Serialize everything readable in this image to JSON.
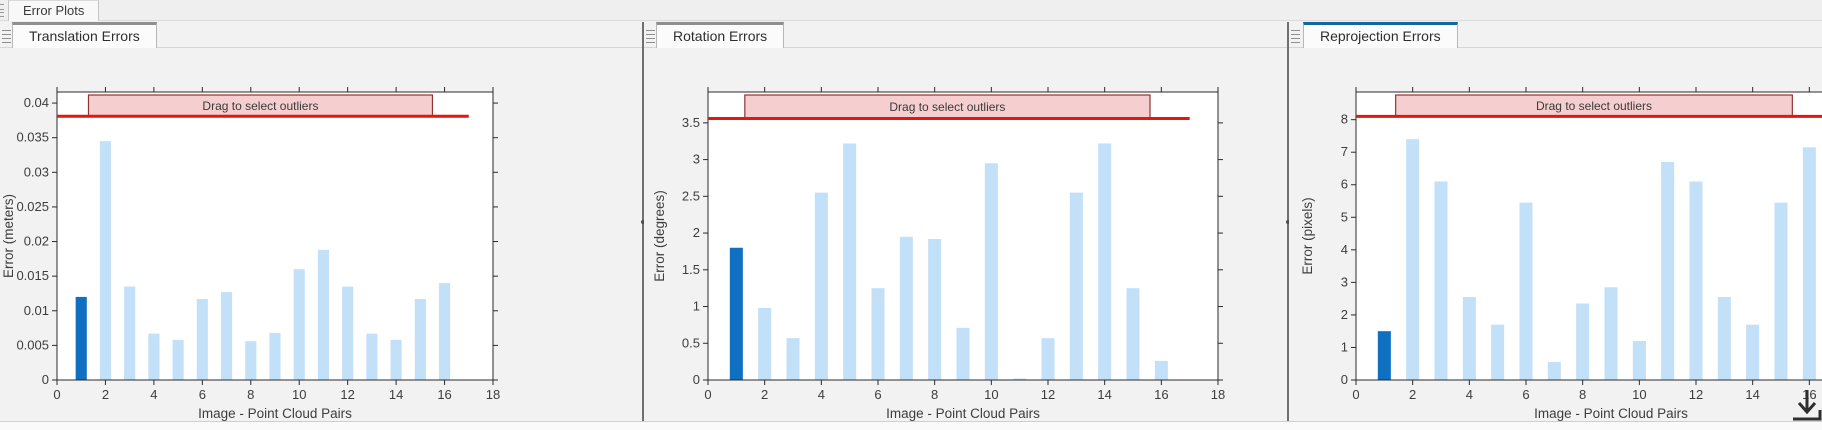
{
  "window": {
    "doc_tab": "Error Plots"
  },
  "colors": {
    "accent_blue": "#15659f",
    "inactive_tab_top": "#8f8f8f",
    "bar_light": "#c3e0f9",
    "bar_dark": "#0f6fc1",
    "threshold_red": "#e2180e",
    "band_fill": "#f5cfcf",
    "band_border": "#8c3434",
    "axis": "#2b2b2b",
    "label_text": "#3d3d3d"
  },
  "chart_data": [
    {
      "type": "bar",
      "tab": {
        "label": "Translation Errors",
        "active": false
      },
      "ylabel": "Error (meters)",
      "xlabel": "Image - Point Cloud Pairs",
      "x": [
        1,
        2,
        3,
        4,
        5,
        6,
        7,
        8,
        9,
        10,
        11,
        12,
        13,
        14,
        15,
        16
      ],
      "values": [
        0.012,
        0.0345,
        0.0135,
        0.0067,
        0.0058,
        0.0117,
        0.0127,
        0.0056,
        0.0068,
        0.016,
        0.0188,
        0.0135,
        0.0067,
        0.0058,
        0.0117,
        0.014
      ],
      "highlight_index": 0,
      "bar_width": 0.46,
      "xlim": [
        0,
        18
      ],
      "ylim": [
        0,
        0.0416
      ],
      "xticks": [
        0,
        2,
        4,
        6,
        8,
        10,
        12,
        14,
        16,
        18
      ],
      "yticks": [
        0,
        0.005,
        0.01,
        0.015,
        0.02,
        0.025,
        0.03,
        0.035,
        0.04
      ],
      "threshold": 0.0381,
      "threshold_extent": [
        0,
        17
      ],
      "band": {
        "x0": 1.3,
        "x1": 15.5,
        "label": "Drag to select outliers"
      }
    },
    {
      "type": "bar",
      "tab": {
        "label": "Rotation Errors",
        "active": false
      },
      "ylabel": "Error (degrees)",
      "xlabel": "Image - Point Cloud Pairs",
      "x": [
        1,
        2,
        3,
        4,
        5,
        6,
        7,
        8,
        9,
        10,
        11,
        12,
        13,
        14,
        15,
        16
      ],
      "values": [
        1.8,
        0.98,
        0.57,
        2.55,
        3.22,
        1.25,
        1.95,
        1.92,
        0.71,
        2.95,
        0.02,
        0.57,
        2.55,
        3.22,
        1.25,
        0.26
      ],
      "highlight_index": 0,
      "bar_width": 0.46,
      "xlim": [
        0,
        18
      ],
      "ylim": [
        0,
        3.92
      ],
      "xticks": [
        0,
        2,
        4,
        6,
        8,
        10,
        12,
        14,
        16,
        18
      ],
      "yticks": [
        0,
        0.5,
        1,
        1.5,
        2,
        2.5,
        3,
        3.5
      ],
      "threshold": 3.56,
      "threshold_extent": [
        0,
        17
      ],
      "band": {
        "x0": 1.3,
        "x1": 15.6,
        "label": "Drag to select outliers"
      }
    },
    {
      "type": "bar",
      "tab": {
        "label": "Reprojection Errors",
        "active": true
      },
      "ylabel": "Error (pixels)",
      "xlabel": "Image - Point Cloud Pairs",
      "x": [
        1,
        2,
        3,
        4,
        5,
        6,
        7,
        8,
        9,
        10,
        11,
        12,
        13,
        14,
        15,
        16
      ],
      "values": [
        1.5,
        7.4,
        6.1,
        2.55,
        1.7,
        5.45,
        0.55,
        2.35,
        2.85,
        1.2,
        6.7,
        6.1,
        2.55,
        1.7,
        5.45,
        7.15
      ],
      "highlight_index": 0,
      "bar_width": 0.46,
      "xlim": [
        0,
        18
      ],
      "ylim": [
        0,
        8.85
      ],
      "xticks": [
        0,
        2,
        4,
        6,
        8,
        10,
        12,
        14,
        16,
        18
      ],
      "yticks": [
        0,
        1,
        2,
        3,
        4,
        5,
        6,
        7,
        8
      ],
      "threshold": 8.1,
      "threshold_extent": [
        0,
        17
      ],
      "band": {
        "x0": 1.4,
        "x1": 15.4,
        "label": "Drag to select outliers"
      }
    }
  ]
}
